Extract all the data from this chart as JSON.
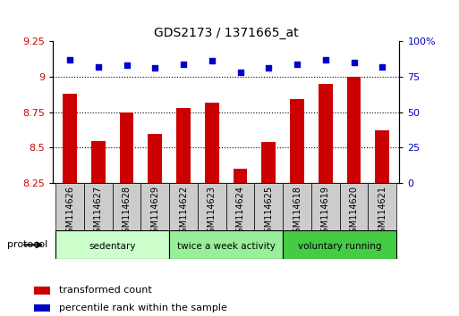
{
  "title": "GDS2173 / 1371665_at",
  "samples": [
    "GSM114626",
    "GSM114627",
    "GSM114628",
    "GSM114629",
    "GSM114622",
    "GSM114623",
    "GSM114624",
    "GSM114625",
    "GSM114618",
    "GSM114619",
    "GSM114620",
    "GSM114621"
  ],
  "bar_values": [
    8.88,
    8.55,
    8.75,
    8.6,
    8.78,
    8.82,
    8.35,
    8.54,
    8.84,
    8.95,
    9.0,
    8.62
  ],
  "dot_percentiles": [
    87,
    82,
    83,
    81,
    84,
    86,
    78,
    81,
    84,
    87,
    85,
    82
  ],
  "ylim_left": [
    8.25,
    9.25
  ],
  "ylim_right": [
    0,
    100
  ],
  "yticks_left": [
    8.25,
    8.5,
    8.75,
    9.0,
    9.25
  ],
  "yticks_right": [
    0,
    25,
    50,
    75,
    100
  ],
  "bar_color": "#cc0000",
  "dot_color": "#0000cc",
  "bar_bottom": 8.25,
  "groups": [
    {
      "label": "sedentary",
      "start": 0,
      "end": 4,
      "color": "#ccffcc"
    },
    {
      "label": "twice a week activity",
      "start": 4,
      "end": 8,
      "color": "#99ee99"
    },
    {
      "label": "voluntary running",
      "start": 8,
      "end": 12,
      "color": "#44cc44"
    }
  ],
  "protocol_label": "protocol",
  "legend_items": [
    {
      "label": "transformed count",
      "color": "#cc0000"
    },
    {
      "label": "percentile rank within the sample",
      "color": "#0000cc"
    }
  ],
  "tick_label_color_left": "#cc0000",
  "tick_label_color_right": "#0000cc",
  "background_color": "#ffffff",
  "sample_bg_color": "#cccccc",
  "bar_width": 0.5,
  "xlim": [
    -0.6,
    11.6
  ]
}
